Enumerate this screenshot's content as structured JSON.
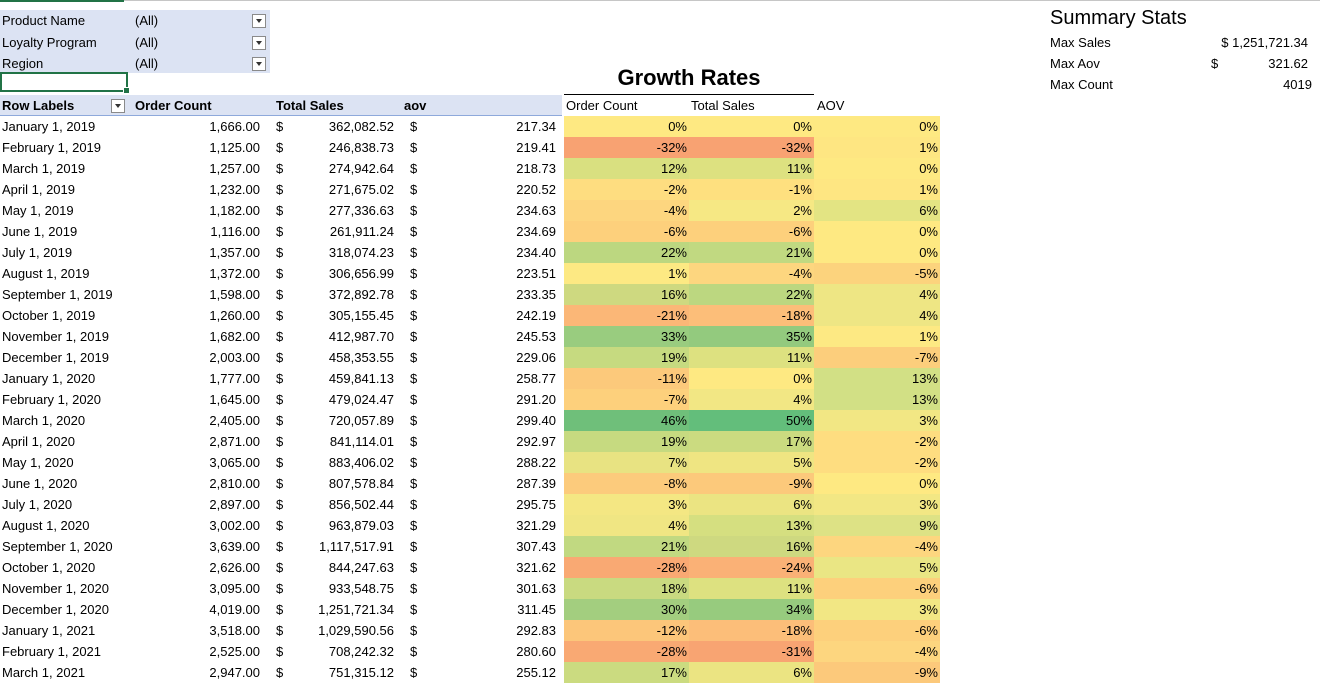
{
  "filters": [
    {
      "label": "Product Name",
      "value": "(All)"
    },
    {
      "label": "Loyalty Program",
      "value": "(All)"
    },
    {
      "label": "Region",
      "value": "(All)"
    }
  ],
  "pivot_headers": {
    "row_labels": "Row Labels",
    "order_count": "Order Count",
    "total_sales": "Total Sales",
    "aov": "aov"
  },
  "growth": {
    "title": "Growth Rates",
    "headers": [
      "Order Count",
      "Total Sales",
      "AOV"
    ]
  },
  "currency_symbol": "$",
  "rows": [
    {
      "date": "January 1, 2019",
      "count": "1,666.00",
      "sales": "362,082.52",
      "aov": "217.34",
      "g": [
        "0%",
        "0%",
        "0%"
      ],
      "gc": [
        "#fee982",
        "#fee982",
        "#fee982"
      ]
    },
    {
      "date": "February 1, 2019",
      "count": "1,125.00",
      "sales": "246,838.73",
      "aov": "219.41",
      "g": [
        "-32%",
        "-32%",
        "1%"
      ],
      "gc": [
        "#f8a272",
        "#f8a272",
        "#fee682"
      ]
    },
    {
      "date": "March 1, 2019",
      "count": "1,257.00",
      "sales": "274,942.64",
      "aov": "218.73",
      "g": [
        "12%",
        "11%",
        "0%"
      ],
      "gc": [
        "#d9e080",
        "#dde180",
        "#fee982"
      ]
    },
    {
      "date": "April 1, 2019",
      "count": "1,232.00",
      "sales": "271,675.02",
      "aov": "220.52",
      "g": [
        "-2%",
        "-1%",
        "1%"
      ],
      "gc": [
        "#fedd80",
        "#fee07f",
        "#fee682"
      ]
    },
    {
      "date": "May 1, 2019",
      "count": "1,182.00",
      "sales": "277,336.63",
      "aov": "234.63",
      "g": [
        "-4%",
        "2%",
        "6%"
      ],
      "gc": [
        "#fdd67f",
        "#f6e884",
        "#e3e483"
      ]
    },
    {
      "date": "June 1, 2019",
      "count": "1,116.00",
      "sales": "261,911.24",
      "aov": "234.69",
      "g": [
        "-6%",
        "-6%",
        "0%"
      ],
      "gc": [
        "#fdd07c",
        "#fdd07c",
        "#fee982"
      ]
    },
    {
      "date": "July 1, 2019",
      "count": "1,357.00",
      "sales": "318,074.23",
      "aov": "234.40",
      "g": [
        "22%",
        "21%",
        "0%"
      ],
      "gc": [
        "#bcd780",
        "#c1d981",
        "#fee982"
      ]
    },
    {
      "date": "August 1, 2019",
      "count": "1,372.00",
      "sales": "306,656.99",
      "aov": "223.51",
      "g": [
        "1%",
        "-4%",
        "-5%"
      ],
      "gc": [
        "#fde983",
        "#fdd67f",
        "#fcd37d"
      ]
    },
    {
      "date": "September 1, 2019",
      "count": "1,598.00",
      "sales": "372,892.78",
      "aov": "233.35",
      "g": [
        "16%",
        "22%",
        "4%"
      ],
      "gc": [
        "#ced980",
        "#bcd780",
        "#eee684"
      ]
    },
    {
      "date": "October 1, 2019",
      "count": "1,260.00",
      "sales": "305,155.45",
      "aov": "242.19",
      "g": [
        "-21%",
        "-18%",
        "4%"
      ],
      "gc": [
        "#fbb777",
        "#fcbe79",
        "#eee684"
      ]
    },
    {
      "date": "November 1, 2019",
      "count": "1,682.00",
      "sales": "412,987.70",
      "aov": "245.53",
      "g": [
        "33%",
        "35%",
        "1%"
      ],
      "gc": [
        "#99cc7f",
        "#93ca7e",
        "#fde983"
      ]
    },
    {
      "date": "December 1, 2019",
      "count": "2,003.00",
      "sales": "458,353.55",
      "aov": "229.06",
      "g": [
        "19%",
        "11%",
        "-7%"
      ],
      "gc": [
        "#c6da80",
        "#dde180",
        "#fcce7c"
      ]
    },
    {
      "date": "January 1, 2020",
      "count": "1,777.00",
      "sales": "459,841.13",
      "aov": "258.77",
      "g": [
        "-11%",
        "0%",
        "13%"
      ],
      "gc": [
        "#fcc97b",
        "#fee982",
        "#d2e085"
      ]
    },
    {
      "date": "February 1, 2020",
      "count": "1,645.00",
      "sales": "479,024.47",
      "aov": "291.20",
      "g": [
        "-7%",
        "4%",
        "13%"
      ],
      "gc": [
        "#fdd07c",
        "#f2e784",
        "#d2e085"
      ]
    },
    {
      "date": "March 1, 2020",
      "count": "2,405.00",
      "sales": "720,057.89",
      "aov": "299.40",
      "g": [
        "46%",
        "50%",
        "3%"
      ],
      "gc": [
        "#6fbf7a",
        "#63be7b",
        "#f2e784"
      ]
    },
    {
      "date": "April 1, 2020",
      "count": "2,871.00",
      "sales": "841,114.01",
      "aov": "292.97",
      "g": [
        "19%",
        "17%",
        "-2%"
      ],
      "gc": [
        "#c6da80",
        "#cbdb80",
        "#fedd80"
      ]
    },
    {
      "date": "May 1, 2020",
      "count": "3,065.00",
      "sales": "883,406.02",
      "aov": "288.22",
      "g": [
        "7%",
        "5%",
        "-2%"
      ],
      "gc": [
        "#e8e382",
        "#efe582",
        "#fedd80"
      ]
    },
    {
      "date": "June 1, 2020",
      "count": "2,810.00",
      "sales": "807,578.84",
      "aov": "287.39",
      "g": [
        "-8%",
        "-9%",
        "0%"
      ],
      "gc": [
        "#fccb7c",
        "#fcc97b",
        "#fee982"
      ]
    },
    {
      "date": "July 1, 2020",
      "count": "2,897.00",
      "sales": "856,502.44",
      "aov": "295.75",
      "g": [
        "3%",
        "6%",
        "3%"
      ],
      "gc": [
        "#f4e783",
        "#ebe482",
        "#f2e784"
      ]
    },
    {
      "date": "August 1, 2020",
      "count": "3,002.00",
      "sales": "963,879.03",
      "aov": "321.29",
      "g": [
        "4%",
        "13%",
        "9%"
      ],
      "gc": [
        "#f0e683",
        "#d5df80",
        "#dde285"
      ]
    },
    {
      "date": "September 1, 2020",
      "count": "3,639.00",
      "sales": "1,117,517.91",
      "aov": "307.43",
      "g": [
        "21%",
        "16%",
        "-4%"
      ],
      "gc": [
        "#c1d981",
        "#ced980",
        "#fdd67f"
      ]
    },
    {
      "date": "October 1, 2020",
      "count": "2,626.00",
      "sales": "844,247.63",
      "aov": "321.62",
      "g": [
        "-28%",
        "-24%",
        "5%"
      ],
      "gc": [
        "#f9a973",
        "#fab176",
        "#eae684"
      ]
    },
    {
      "date": "November 1, 2020",
      "count": "3,095.00",
      "sales": "933,548.75",
      "aov": "301.63",
      "g": [
        "18%",
        "11%",
        "-6%"
      ],
      "gc": [
        "#c9da80",
        "#dde180",
        "#fdd07c"
      ]
    },
    {
      "date": "December 1, 2020",
      "count": "4,019.00",
      "sales": "1,251,721.34",
      "aov": "311.45",
      "g": [
        "30%",
        "34%",
        "3%"
      ],
      "gc": [
        "#a3ce7f",
        "#97cb7e",
        "#f2e784"
      ]
    },
    {
      "date": "January 1, 2021",
      "count": "3,518.00",
      "sales": "1,029,590.56",
      "aov": "292.83",
      "g": [
        "-12%",
        "-18%",
        "-6%"
      ],
      "gc": [
        "#fcc67a",
        "#fcbe79",
        "#fdd07c"
      ]
    },
    {
      "date": "February 1, 2021",
      "count": "2,525.00",
      "sales": "708,242.32",
      "aov": "280.60",
      "g": [
        "-28%",
        "-31%",
        "-4%"
      ],
      "gc": [
        "#f9a973",
        "#f8a472",
        "#fdd67f"
      ]
    },
    {
      "date": "March 1, 2021",
      "count": "2,947.00",
      "sales": "751,315.12",
      "aov": "255.12",
      "g": [
        "17%",
        "6%",
        "-9%"
      ],
      "gc": [
        "#cbdb80",
        "#ebe482",
        "#fcc97b"
      ]
    }
  ],
  "summary": {
    "title": "Summary Stats",
    "items": [
      {
        "label": "Max Sales",
        "value": "$ 1,251,721.34",
        "currency": ""
      },
      {
        "label": "Max Aov",
        "value": "321.62",
        "currency": "$"
      },
      {
        "label": "Max Count",
        "value": "4019",
        "currency": ""
      }
    ]
  }
}
